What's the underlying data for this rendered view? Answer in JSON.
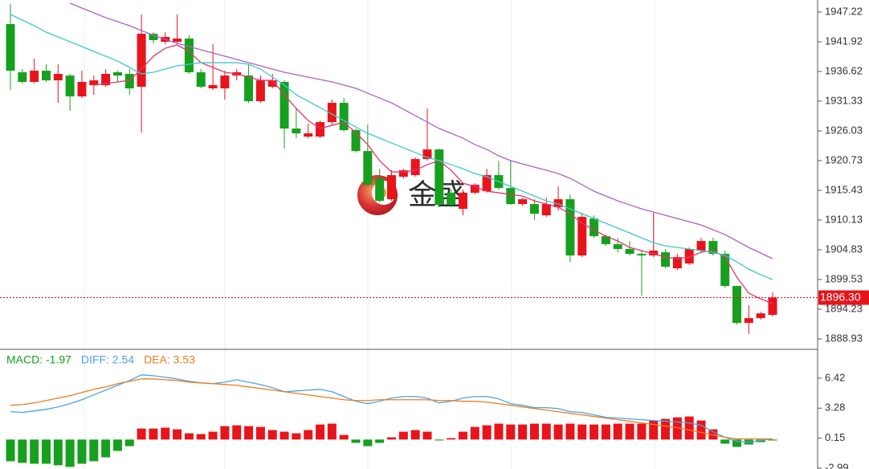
{
  "watermark": "金盛",
  "chart_data": [
    {
      "type": "candlestick",
      "up_color": "#e8141b",
      "down_color": "#16a01d",
      "open": [
        1945.07,
        1936.48,
        1934.76,
        1936.76,
        1935.04,
        1935.9,
        1932.18,
        1934.18,
        1934.18,
        1936.48,
        1936.19,
        1933.9,
        1943.35,
        1941.92,
        1941.92,
        1942.49,
        1936.48,
        1933.61,
        1933.61,
        1935.9,
        1935.9,
        1931.32,
        1933.9,
        1934.76,
        1926.45,
        1925.01,
        1925.01,
        1927.59,
        1931.03,
        1926.16,
        1922.43,
        1917.56,
        1913.84,
        1917.85,
        1918.14,
        1921.0,
        1922.72,
        1914.99,
        1912.12,
        1914.99,
        1915.27,
        1918.14,
        1915.84,
        1912.98,
        1912.98,
        1910.97,
        1912.41,
        1913.84,
        1903.81,
        1910.4,
        1907.25,
        1905.82,
        1904.96,
        1904.1,
        1903.81,
        1904.38,
        1901.52,
        1902.38,
        1904.67,
        1906.39,
        1904.1,
        1898.37,
        1891.78,
        1892.64,
        1893.21
      ],
      "high": [
        1948.65,
        1937.05,
        1938.91,
        1937.91,
        1937.91,
        1936.19,
        1936.76,
        1935.9,
        1937.05,
        1936.76,
        1937.05,
        1946.79,
        1943.64,
        1943.64,
        1946.79,
        1943.07,
        1937.05,
        1941.49,
        1936.76,
        1937.05,
        1937.91,
        1935.9,
        1936.19,
        1935.04,
        1930.03,
        1927.31,
        1927.88,
        1931.6,
        1931.89,
        1926.45,
        1927.16,
        1919.28,
        1919.0,
        1919.28,
        1921.29,
        1930.03,
        1922.87,
        1915.56,
        1915.56,
        1916.7,
        1919.28,
        1920.72,
        1920.72,
        1914.13,
        1913.84,
        1914.13,
        1916.13,
        1914.7,
        1911.4,
        1910.97,
        1907.54,
        1906.96,
        1906.39,
        1904.67,
        1911.4,
        1904.96,
        1904.1,
        1905.24,
        1906.96,
        1906.96,
        1904.67,
        1898.37,
        1894.93,
        1893.78,
        1897.22
      ],
      "low": [
        1933.32,
        1934.47,
        1934.47,
        1934.76,
        1931.03,
        1929.6,
        1931.89,
        1932.46,
        1933.9,
        1934.76,
        1932.46,
        1925.73,
        1941.63,
        1941.49,
        1941.49,
        1936.19,
        1933.61,
        1933.32,
        1931.6,
        1935.04,
        1931.03,
        1931.03,
        1933.61,
        1922.87,
        1924.73,
        1924.73,
        1924.73,
        1927.16,
        1925.87,
        1922.15,
        1916.13,
        1913.27,
        1913.55,
        1917.56,
        1917.85,
        1920.72,
        1912.41,
        1912.41,
        1910.97,
        1914.7,
        1914.99,
        1915.56,
        1912.84,
        1912.69,
        1910.11,
        1910.69,
        1911.83,
        1902.66,
        1903.52,
        1906.96,
        1905.53,
        1904.38,
        1903.81,
        1896.65,
        1903.52,
        1901.52,
        1901.23,
        1902.09,
        1904.38,
        1903.81,
        1898.08,
        1891.49,
        1889.77,
        1892.35,
        1892.92
      ],
      "close": [
        1936.76,
        1934.76,
        1936.76,
        1935.04,
        1936.19,
        1932.18,
        1934.76,
        1935.04,
        1936.19,
        1935.9,
        1933.61,
        1943.35,
        1942.21,
        1942.78,
        1942.49,
        1936.48,
        1933.9,
        1934.18,
        1935.9,
        1936.48,
        1931.32,
        1935.04,
        1935.04,
        1926.45,
        1925.59,
        1925.59,
        1927.59,
        1931.03,
        1926.16,
        1922.43,
        1916.42,
        1913.55,
        1918.14,
        1919.0,
        1921.0,
        1922.72,
        1912.84,
        1912.84,
        1914.99,
        1916.42,
        1918.14,
        1915.84,
        1912.98,
        1913.84,
        1911.26,
        1912.98,
        1913.84,
        1903.81,
        1910.69,
        1907.25,
        1905.82,
        1904.96,
        1904.1,
        1903.81,
        1904.67,
        1901.8,
        1903.52,
        1904.96,
        1906.39,
        1904.1,
        1898.37,
        1891.78,
        1892.64,
        1893.49,
        1896.3
      ],
      "series": [
        {
          "color": "#e4356f",
          "values": [
            null,
            null,
            null,
            null,
            null,
            null,
            null,
            1934.18,
            1934.47,
            1934.76,
            1935.04,
            1937.05,
            1939.34,
            1940.77,
            1941.35,
            1940.2,
            1938.19,
            1937.34,
            1936.48,
            1936.19,
            1935.62,
            1935.04,
            1935.04,
            1932.46,
            1930.03,
            1927.88,
            1926.45,
            1927.02,
            1927.59,
            1925.73,
            1923.58,
            1920.72,
            1918.71,
            1918.71,
            1919.0,
            1920.0,
            1920.72,
            1919.0,
            1916.7,
            1916.13,
            1915.27,
            1914.99,
            1914.7,
            1914.41,
            1913.55,
            1912.98,
            1912.41,
            1911.26,
            1909.54,
            1908.39,
            1907.25,
            1906.39,
            1905.24,
            1904.67,
            1904.1,
            1903.52,
            1903.24,
            1903.52,
            1904.38,
            1904.67,
            1903.52,
            1899.94,
            1897.08,
            1896.07,
            1895.21
          ]
        },
        {
          "color": "#3ec8d0",
          "values": [
            1946.79,
            1945.79,
            1944.79,
            1943.64,
            1942.78,
            1941.92,
            1941.06,
            1940.2,
            1939.34,
            1938.48,
            1937.34,
            1936.19,
            1936.48,
            1937.05,
            1937.62,
            1937.91,
            1938.19,
            1938.19,
            1938.19,
            1938.19,
            1937.91,
            1937.05,
            1935.62,
            1934.18,
            1932.46,
            1931.32,
            1930.17,
            1929.03,
            1927.88,
            1926.73,
            1925.59,
            1924.73,
            1923.87,
            1923.01,
            1922.15,
            1921.29,
            1920.72,
            1920.0,
            1919.28,
            1918.42,
            1917.85,
            1916.99,
            1916.13,
            1915.27,
            1914.41,
            1913.55,
            1912.98,
            1912.12,
            1911.26,
            1910.4,
            1909.54,
            1908.68,
            1907.82,
            1906.96,
            1906.1,
            1905.53,
            1905.24,
            1904.96,
            1904.67,
            1904.38,
            1903.81,
            1902.66,
            1901.37,
            1900.37,
            1899.51
          ]
        },
        {
          "color": "#b25ec8",
          "values": [
            null,
            null,
            null,
            null,
            null,
            1948.8,
            1947.94,
            1947.08,
            1946.22,
            1945.5,
            1944.79,
            1943.93,
            1943.07,
            1942.35,
            1941.63,
            1941.06,
            1940.49,
            1939.91,
            1939.34,
            1938.77,
            1938.19,
            1937.62,
            1937.05,
            1936.48,
            1936.05,
            1935.62,
            1935.19,
            1934.76,
            1934.18,
            1933.61,
            1932.75,
            1931.89,
            1931.03,
            1929.89,
            1928.74,
            1927.59,
            1926.45,
            1925.59,
            1924.73,
            1923.58,
            1922.72,
            1921.58,
            1920.72,
            1920.14,
            1919.57,
            1919.0,
            1918.42,
            1917.56,
            1916.42,
            1915.27,
            1914.41,
            1913.55,
            1912.84,
            1912.12,
            1911.55,
            1910.97,
            1910.4,
            1909.83,
            1909.25,
            1908.39,
            1907.54,
            1906.39,
            1905.24,
            1904.24,
            1903.24
          ]
        }
      ],
      "ylim": [
        1887.07,
        1949.37
      ],
      "yticks": [
        1947.22,
        1941.92,
        1936.62,
        1931.33,
        1926.03,
        1920.73,
        1915.43,
        1910.13,
        1904.83,
        1899.53,
        1894.23,
        1888.93
      ],
      "last_price": {
        "value": 1896.3,
        "label": "1896.30"
      },
      "grid": true
    },
    {
      "type": "macd",
      "legend": [
        {
          "label": "MACD: -1.97",
          "color": "#16a01d"
        },
        {
          "label": "DIFF: 2.54",
          "color": "#4aa3e8"
        },
        {
          "label": "DEA: 3.53",
          "color": "#f07c1e"
        }
      ],
      "histogram": {
        "up_color": "#e8141b",
        "down_color": "#16a01d",
        "values": [
          -2.27,
          -2.44,
          -2.53,
          -2.53,
          -2.69,
          -2.86,
          -2.53,
          -2.27,
          -1.86,
          -1.19,
          -0.69,
          1.15,
          1.15,
          1.24,
          1.07,
          0.65,
          0.57,
          0.82,
          1.4,
          1.49,
          1.4,
          1.32,
          0.99,
          0.82,
          0.65,
          0.99,
          1.57,
          1.66,
          0.48,
          -0.35,
          -0.69,
          -0.35,
          0.23,
          0.82,
          0.99,
          0.82,
          -0.1,
          0.15,
          0.82,
          1.32,
          1.49,
          1.66,
          1.57,
          1.57,
          1.66,
          1.66,
          1.57,
          1.66,
          1.57,
          1.57,
          1.57,
          1.66,
          1.66,
          1.66,
          1.99,
          2.16,
          2.32,
          2.41,
          1.99,
          1.07,
          -0.43,
          -0.77,
          -0.52,
          -0.27,
          -0.1
        ]
      },
      "series": [
        {
          "color": "#4aa3e8",
          "values": [
            2.91,
            2.83,
            2.99,
            3.16,
            3.41,
            3.75,
            4.16,
            4.67,
            5.17,
            5.67,
            6.17,
            6.76,
            6.67,
            6.51,
            6.34,
            6.09,
            5.92,
            5.84,
            6.0,
            6.25,
            6.0,
            5.75,
            5.42,
            5.0,
            5.08,
            5.17,
            5.25,
            5.0,
            4.5,
            4.0,
            3.75,
            4.0,
            4.33,
            4.5,
            4.5,
            4.33,
            3.83,
            4.0,
            4.33,
            4.5,
            4.5,
            4.25,
            3.75,
            3.58,
            3.33,
            3.33,
            3.24,
            2.91,
            2.83,
            2.58,
            2.32,
            2.24,
            2.16,
            2.07,
            1.99,
            1.91,
            1.83,
            1.74,
            1.49,
            0.82,
            0.23,
            -0.18,
            -0.27,
            -0.1,
            0.07
          ]
        },
        {
          "color": "#f07c1e",
          "values": [
            3.58,
            3.66,
            3.83,
            4.08,
            4.33,
            4.58,
            4.92,
            5.25,
            5.5,
            5.84,
            6.09,
            6.34,
            6.34,
            6.25,
            6.17,
            6.0,
            5.92,
            5.84,
            5.75,
            5.67,
            5.5,
            5.33,
            5.17,
            5.0,
            4.83,
            4.67,
            4.5,
            4.33,
            4.16,
            4.08,
            4.08,
            4.16,
            4.16,
            4.16,
            4.16,
            4.16,
            4.08,
            4.08,
            4.0,
            4.0,
            3.91,
            3.75,
            3.58,
            3.41,
            3.24,
            3.08,
            2.91,
            2.74,
            2.58,
            2.41,
            2.24,
            2.07,
            1.91,
            1.74,
            1.57,
            1.4,
            1.24,
            0.99,
            0.74,
            0.48,
            0.23,
            0.07,
            0.07,
            0.07,
            0.07
          ]
        }
      ],
      "ylim": [
        -3.08,
        9.43
      ],
      "yticks": [
        6.42,
        3.28,
        0.15,
        -2.99
      ],
      "grid": true
    }
  ]
}
